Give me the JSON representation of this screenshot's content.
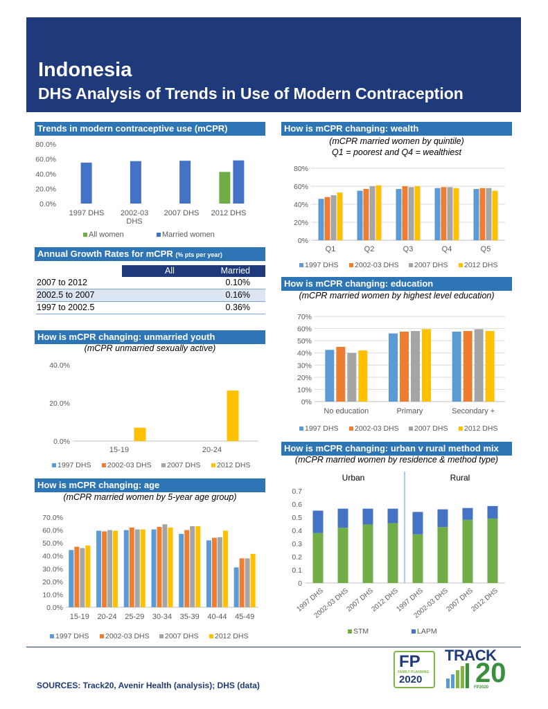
{
  "header": {
    "country": "Indonesia",
    "title": "DHS Analysis of Trends in Use of Modern Contraception"
  },
  "colors": {
    "banner": "#1F3A7A",
    "section": "#2E75B6",
    "blue": "#5B9BD5",
    "orange": "#ED7D31",
    "gray": "#A5A5A5",
    "yellow": "#FFC000",
    "married": "#4472C4",
    "allwomen": "#70AD47"
  },
  "legend_survey": [
    "1997 DHS",
    "2002-03 DHS",
    "2007 DHS",
    "2012 DHS"
  ],
  "sections": {
    "trends": "Trends in modern contraceptive use (mCPR)",
    "growth": "Annual Growth Rates for mCPR",
    "growth_small": "(% pts per year)",
    "youth": "How is mCPR changing: unmarried youth",
    "youth_sub": "(mCPR unmarried sexually active)",
    "age": "How is mCPR changing: age",
    "age_sub": "(mCPR married women by 5-year age group)",
    "wealth": "How is mCPR changing: wealth",
    "wealth_sub1": "(mCPR married women by quintile)",
    "wealth_sub2": "Q1 = poorest and Q4 = wealthiest",
    "education": "How is mCPR changing: education",
    "education_sub": "(mCPR married women by highest level education)",
    "urban": "How is mCPR changing: urban v rural method mix",
    "urban_sub": "(mCPR married women by residence & method type)"
  },
  "growth_table": {
    "col_all": "All",
    "col_married": "Married",
    "rows": [
      {
        "label": "2007 to 2012",
        "value": "0.10%"
      },
      {
        "label": "2002.5 to 2007",
        "value": "0.16%"
      },
      {
        "label": "1997 to 2002.5",
        "value": "0.36%"
      }
    ]
  },
  "chart_data": [
    {
      "id": "trends",
      "type": "bar",
      "categories": [
        "1997 DHS",
        "2002-03 DHS",
        "2007 DHS",
        "2012 DHS"
      ],
      "series": [
        {
          "name": "All women",
          "values": [
            null,
            null,
            null,
            42.5
          ]
        },
        {
          "name": "Married women",
          "values": [
            55,
            57,
            57.5,
            58
          ]
        }
      ],
      "yticks": [
        "0.0%",
        "20.0%",
        "40.0%",
        "60.0%",
        "80.0%"
      ],
      "ylim": [
        0,
        80
      ]
    },
    {
      "id": "youth",
      "type": "bar",
      "categories": [
        "15-19",
        "20-24"
      ],
      "series": [
        {
          "name": "1997 DHS",
          "values": [
            null,
            null
          ]
        },
        {
          "name": "2002-03 DHS",
          "values": [
            null,
            null
          ]
        },
        {
          "name": "2007 DHS",
          "values": [
            null,
            null
          ]
        },
        {
          "name": "2012 DHS",
          "values": [
            7,
            26.5
          ]
        }
      ],
      "yticks": [
        "0.0%",
        "20.0%",
        "40.0%"
      ],
      "ylim": [
        0,
        40
      ]
    },
    {
      "id": "age",
      "type": "bar",
      "categories": [
        "15-19",
        "20-24",
        "25-29",
        "30-34",
        "35-39",
        "40-44",
        "45-49"
      ],
      "series": [
        {
          "name": "1997 DHS",
          "values": [
            44.5,
            59.5,
            60,
            60.5,
            57,
            52,
            31
          ]
        },
        {
          "name": "2002-03 DHS",
          "values": [
            47,
            59,
            62,
            62.5,
            60,
            54,
            38
          ]
        },
        {
          "name": "2007 DHS",
          "values": [
            46,
            60,
            60.5,
            64.5,
            63,
            54.5,
            38
          ]
        },
        {
          "name": "2012 DHS",
          "values": [
            48,
            59.5,
            60.5,
            62,
            63,
            59.5,
            41.5
          ]
        }
      ],
      "yticks": [
        "0.0%",
        "10.0%",
        "20.0%",
        "30.0%",
        "40.0%",
        "50.0%",
        "60.0%",
        "70.0%"
      ],
      "ylim": [
        0,
        70
      ]
    },
    {
      "id": "wealth",
      "type": "bar",
      "categories": [
        "Q1",
        "Q2",
        "Q3",
        "Q4",
        "Q5"
      ],
      "series": [
        {
          "name": "1997 DHS",
          "values": [
            46,
            55,
            57,
            58,
            57
          ]
        },
        {
          "name": "2002-03 DHS",
          "values": [
            48,
            57,
            60,
            59,
            58
          ]
        },
        {
          "name": "2007 DHS",
          "values": [
            50,
            60,
            59,
            59,
            58
          ]
        },
        {
          "name": "2012 DHS",
          "values": [
            53,
            61,
            60,
            58,
            55
          ]
        }
      ],
      "yticks": [
        "0%",
        "20%",
        "40%",
        "60%",
        "80%"
      ],
      "ylim": [
        0,
        80
      ]
    },
    {
      "id": "education",
      "type": "bar",
      "categories": [
        "No education",
        "Primary",
        "Secondary +"
      ],
      "series": [
        {
          "name": "1997 DHS",
          "values": [
            42.5,
            56,
            57.5
          ]
        },
        {
          "name": "2002-03 DHS",
          "values": [
            45,
            57.5,
            58
          ]
        },
        {
          "name": "2007 DHS",
          "values": [
            40,
            58,
            59.5
          ]
        },
        {
          "name": "2012 DHS",
          "values": [
            42,
            59.5,
            58
          ]
        }
      ],
      "yticks": [
        "0%",
        "10%",
        "20%",
        "30%",
        "40%",
        "50%",
        "60%",
        "70%"
      ],
      "ylim": [
        0,
        70
      ]
    },
    {
      "id": "urban",
      "type": "stacked-bar",
      "groups": [
        "Urban",
        "Rural"
      ],
      "categories": [
        "1997 DHS",
        "2002-03 DHS",
        "2007 DHS",
        "2012 DHS",
        "1997 DHS",
        "2002-03 DHS",
        "2007 DHS",
        "2012 DHS"
      ],
      "series": [
        {
          "name": "STM",
          "values": [
            0.38,
            0.42,
            0.445,
            0.455,
            0.37,
            0.425,
            0.48,
            0.49
          ]
        },
        {
          "name": "LAPM",
          "values": [
            0.17,
            0.145,
            0.12,
            0.11,
            0.17,
            0.135,
            0.09,
            0.095
          ]
        }
      ],
      "yticks": [
        "0",
        "0.1",
        "0.2",
        "0.3",
        "0.4",
        "0.5",
        "0.6",
        "0.7"
      ],
      "ylim": [
        0,
        0.7
      ]
    }
  ],
  "footer": {
    "sources": "SOURCES: Track20, Avenir Health (analysis); DHS (data)"
  },
  "logos": {
    "fp_big": "FP",
    "fp_sub": "FAMILY PLANNING",
    "fp_year": "2020",
    "track_word": "TRACK",
    "track_num": "20",
    "track_small": "FP2020"
  }
}
